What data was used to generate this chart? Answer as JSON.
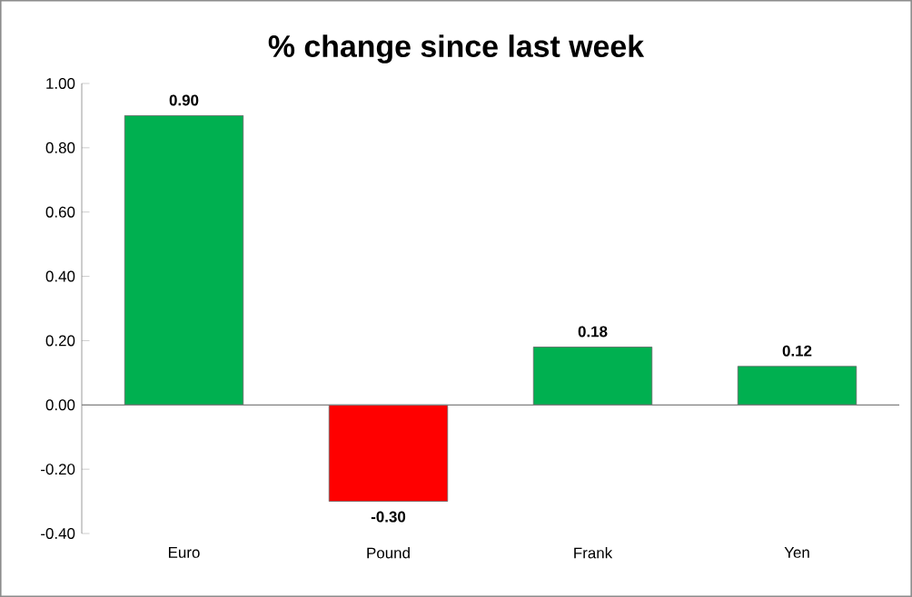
{
  "chart_data": {
    "type": "bar",
    "title": "% change since last week",
    "categories": [
      "Euro",
      "Pound",
      "Frank",
      "Yen"
    ],
    "values": [
      0.9,
      -0.3,
      0.18,
      0.12
    ],
    "colors": [
      "#00b050",
      "#ff0000",
      "#00b050",
      "#00b050"
    ],
    "value_labels": [
      "0.90",
      "-0.30",
      "0.18",
      "0.12"
    ],
    "ylim": [
      -0.4,
      1.0
    ],
    "yticks": [
      {
        "value": -0.4,
        "label": "-0.40"
      },
      {
        "value": -0.2,
        "label": "-0.20"
      },
      {
        "value": 0,
        "label": "0.00"
      },
      {
        "value": 0.2,
        "label": "0.20"
      },
      {
        "value": 0.4,
        "label": "0.40"
      },
      {
        "value": 0.6,
        "label": "0.60"
      },
      {
        "value": 0.8,
        "label": "0.80"
      },
      {
        "value": 1.0,
        "label": "1.00"
      }
    ]
  }
}
